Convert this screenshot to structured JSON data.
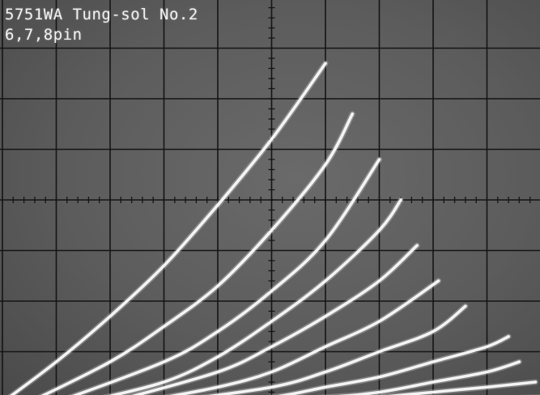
{
  "chart_data": {
    "type": "line",
    "title": "5751WA Tung-sol No.2",
    "subtitle": "6,7,8pin",
    "xlabel": "",
    "ylabel": "",
    "grid": true,
    "grid_divisions": {
      "x": 10,
      "y": 8
    },
    "xlim": [
      0,
      10
    ],
    "ylim": [
      -4,
      4
    ],
    "series": [
      {
        "x": [
          0.0,
          1.0,
          2.0,
          3.0,
          4.0,
          5.0,
          6.0
        ],
        "y": [
          -4.0,
          -3.2,
          -2.3,
          -1.3,
          -0.1,
          1.2,
          2.7
        ]
      },
      {
        "x": [
          0.5,
          2.0,
          3.0,
          4.0,
          5.0,
          6.0,
          6.5
        ],
        "y": [
          -4.0,
          -3.2,
          -2.5,
          -1.7,
          -0.6,
          0.7,
          1.7
        ]
      },
      {
        "x": [
          1.0,
          3.0,
          4.0,
          5.0,
          6.0,
          7.0
        ],
        "y": [
          -4.0,
          -3.2,
          -2.6,
          -1.8,
          -0.8,
          0.8
        ]
      },
      {
        "x": [
          1.5,
          3.0,
          4.0,
          5.0,
          6.0,
          7.0,
          7.4
        ],
        "y": [
          -4.0,
          -3.6,
          -3.1,
          -2.4,
          -1.6,
          -0.6,
          0.0
        ]
      },
      {
        "x": [
          2.0,
          4.0,
          5.0,
          6.0,
          7.0,
          7.7
        ],
        "y": [
          -4.0,
          -3.4,
          -2.9,
          -2.3,
          -1.6,
          -0.9
        ]
      },
      {
        "x": [
          2.5,
          4.0,
          5.0,
          6.0,
          7.0,
          8.1
        ],
        "y": [
          -4.0,
          -3.7,
          -3.4,
          -2.9,
          -2.4,
          -1.6
        ]
      },
      {
        "x": [
          3.0,
          5.0,
          6.0,
          7.0,
          8.0,
          8.6
        ],
        "y": [
          -4.0,
          -3.7,
          -3.4,
          -3.0,
          -2.6,
          -2.1
        ]
      },
      {
        "x": [
          3.5,
          5.0,
          6.0,
          7.0,
          8.0,
          9.0,
          9.4
        ],
        "y": [
          -4.0,
          -3.9,
          -3.7,
          -3.5,
          -3.2,
          -2.9,
          -2.7
        ]
      },
      {
        "x": [
          4.0,
          6.0,
          7.0,
          8.0,
          9.0,
          9.6
        ],
        "y": [
          -4.0,
          -3.9,
          -3.8,
          -3.6,
          -3.4,
          -3.2
        ]
      },
      {
        "x": [
          5.0,
          6.0,
          7.0,
          8.0,
          9.0,
          9.9
        ],
        "y": [
          -4.0,
          -4.0,
          -3.9,
          -3.8,
          -3.7,
          -3.6
        ]
      },
      {
        "x": [
          0.0,
          2.0,
          4.0,
          6.0,
          8.0,
          10.0
        ],
        "y": [
          -4.0,
          -4.0,
          -4.0,
          -4.0,
          -3.95,
          -3.9
        ]
      }
    ]
  },
  "colors": {
    "trace": "#f4f4f4",
    "grid": "#151515",
    "screen": "#5e5e5e",
    "text": "#f2f2f2"
  }
}
